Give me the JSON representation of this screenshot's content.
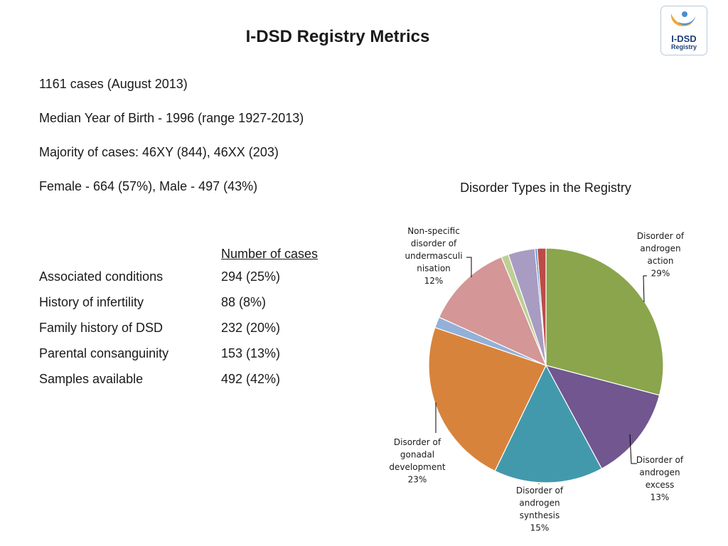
{
  "title": "I-DSD Registry Metrics",
  "logo": {
    "line1": "I-DSD",
    "line2": "Registry",
    "colors": {
      "orange": "#f0a63a",
      "blue": "#4a8fd0",
      "text": "#1f3f77"
    }
  },
  "facts": [
    "1161 cases (August 2013)",
    "Median Year of Birth - 1996 (range 1927-2013)",
    "Majority of cases: 46XY (844), 46XX (203)",
    "Female - 664 (57%), Male - 497 (43%)"
  ],
  "table": {
    "header": "Number of cases",
    "rows": [
      {
        "label": "Associated conditions",
        "value": "294 (25%)"
      },
      {
        "label": "History of infertility",
        "value": "88 (8%)"
      },
      {
        "label": "Family history of DSD",
        "value": "232 (20%)"
      },
      {
        "label": "Parental consanguinity",
        "value": "153 (13%)"
      },
      {
        "label": "Samples available",
        "value": "492 (42%)"
      }
    ]
  },
  "chart_data": {
    "type": "pie",
    "title": "Disorder Types in the Registry",
    "slices": [
      {
        "name": "Disorder of androgen action",
        "value": 29,
        "color": "#8aa54b"
      },
      {
        "name": "Disorder of androgen excess",
        "value": 13,
        "color": "#715690"
      },
      {
        "name": "Disorder of androgen synthesis",
        "value": 15,
        "color": "#4399ac"
      },
      {
        "name": "Disorder of gonadal development",
        "value": 23,
        "color": "#d8833c"
      },
      {
        "name": "",
        "value": 1.5,
        "color": "#93b0d8"
      },
      {
        "name": "Non-specific disorder of undermasculinisation",
        "value": 12,
        "color": "#d49696"
      },
      {
        "name": "",
        "value": 1,
        "color": "#bdcf95"
      },
      {
        "name": "",
        "value": 3.7,
        "color": "#a89cc2"
      },
      {
        "name": "",
        "value": 0.3,
        "color": "#5b8ec7"
      },
      {
        "name": "",
        "value": 1.2,
        "color": "#bd4b47"
      }
    ],
    "labels": [
      {
        "lines": [
          "Disorder of",
          "androgen",
          "action",
          "29%"
        ]
      },
      {
        "lines": [
          "Disorder of",
          "androgen",
          "excess",
          "13%"
        ]
      },
      {
        "lines": [
          "Disorder of",
          "androgen",
          "synthesis",
          "15%"
        ]
      },
      {
        "lines": [
          "Disorder of",
          "gonadal",
          "development",
          "23%"
        ]
      },
      {
        "lines": [
          "Non-specific",
          "disorder of",
          "undermasculi",
          "nisation",
          "12%"
        ]
      }
    ]
  }
}
